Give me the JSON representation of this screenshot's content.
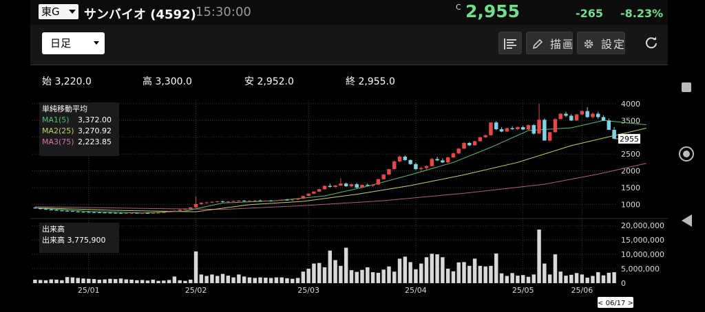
{
  "header": {
    "market": "東G",
    "stock_name": "サンバイオ (4592)",
    "time": "15:30:00",
    "c_mark": "C",
    "price": "2,955",
    "change": "-265",
    "change_pct": "-8.23%"
  },
  "toolbar": {
    "timeframe": "日足",
    "draw_label": "描画",
    "settings_label": "設定"
  },
  "ohlc": {
    "open_label": "始",
    "open": "3,220.0",
    "high_label": "高",
    "high": "3,300.0",
    "low_label": "安",
    "low": "2,952.0",
    "close_label": "終",
    "close": "2,955.0"
  },
  "ma_legend": {
    "title": "単純移動平均",
    "ma1_label": "MA1(5)",
    "ma1_value": "3,372.00",
    "ma2_label": "MA2(25)",
    "ma2_value": "3,270.92",
    "ma3_label": "MA3(75)",
    "ma3_value": "2,223.85"
  },
  "volume_legend": {
    "title": "出来高",
    "label": "出来高",
    "value": "3,775,900"
  },
  "price_axis": {
    "ticks": [
      "4000",
      "3500",
      "3000",
      "2500",
      "2000",
      "1500",
      "1000"
    ],
    "current": "2955"
  },
  "volume_axis": {
    "ticks": [
      "20,000,000",
      "15,000,000",
      "10,000,000",
      "5,000,000",
      "0"
    ]
  },
  "date_axis": {
    "ticks": [
      "25/01",
      "25/02",
      "25/03",
      "25/04",
      "25/05",
      "25/06"
    ],
    "cursor": "< 06/17 >"
  },
  "colors": {
    "up": "#e8474a",
    "down": "#7fd3e6",
    "ma1": "#53c46c",
    "ma2": "#c8d46a",
    "ma3": "#b0607e",
    "accent_green": "#6fe08a"
  },
  "chart_data": {
    "type": "candlestick",
    "price_ylim": [
      700,
      4100
    ],
    "volume_ylim": [
      0,
      21000000
    ],
    "candles_ohlc": [
      [
        900,
        920,
        870,
        880
      ],
      [
        880,
        900,
        850,
        860
      ],
      [
        860,
        880,
        840,
        845
      ],
      [
        845,
        860,
        820,
        830
      ],
      [
        830,
        850,
        810,
        815
      ],
      [
        815,
        830,
        800,
        805
      ],
      [
        805,
        820,
        790,
        800
      ],
      [
        800,
        815,
        780,
        785
      ],
      [
        785,
        800,
        770,
        775
      ],
      [
        775,
        790,
        760,
        770
      ],
      [
        770,
        785,
        755,
        765
      ],
      [
        765,
        780,
        750,
        760
      ],
      [
        760,
        775,
        745,
        755
      ],
      [
        755,
        770,
        740,
        750
      ],
      [
        750,
        765,
        735,
        745
      ],
      [
        745,
        760,
        730,
        740
      ],
      [
        740,
        755,
        728,
        735
      ],
      [
        735,
        750,
        725,
        740
      ],
      [
        740,
        755,
        730,
        745
      ],
      [
        745,
        760,
        735,
        738
      ],
      [
        738,
        752,
        728,
        742
      ],
      [
        742,
        758,
        735,
        740
      ],
      [
        740,
        755,
        730,
        745
      ],
      [
        745,
        760,
        738,
        750
      ],
      [
        750,
        770,
        742,
        765
      ],
      [
        765,
        800,
        760,
        795
      ],
      [
        795,
        820,
        785,
        810
      ],
      [
        810,
        850,
        800,
        840
      ],
      [
        840,
        880,
        830,
        870
      ],
      [
        870,
        920,
        860,
        910
      ],
      [
        910,
        1230,
        900,
        1010
      ],
      [
        1010,
        1060,
        990,
        1045
      ],
      [
        1045,
        1080,
        1020,
        1055
      ],
      [
        1055,
        1090,
        1040,
        1075
      ],
      [
        1075,
        1100,
        1050,
        1090
      ],
      [
        1090,
        1110,
        1060,
        1070
      ],
      [
        1070,
        1100,
        1055,
        1085
      ],
      [
        1085,
        1115,
        1070,
        1100
      ],
      [
        1100,
        1125,
        1080,
        1110
      ],
      [
        1110,
        1130,
        1085,
        1095
      ],
      [
        1095,
        1120,
        1080,
        1105
      ],
      [
        1105,
        1130,
        1090,
        1115
      ],
      [
        1115,
        1140,
        1095,
        1100
      ],
      [
        1100,
        1125,
        1085,
        1110
      ],
      [
        1110,
        1135,
        1090,
        1105
      ],
      [
        1105,
        1130,
        1090,
        1120
      ],
      [
        1120,
        1150,
        1105,
        1135
      ],
      [
        1135,
        1160,
        1115,
        1125
      ],
      [
        1125,
        1150,
        1110,
        1140
      ],
      [
        1140,
        1180,
        1130,
        1170
      ],
      [
        1170,
        1260,
        1160,
        1250
      ],
      [
        1250,
        1330,
        1240,
        1320
      ],
      [
        1320,
        1390,
        1300,
        1380
      ],
      [
        1380,
        1460,
        1370,
        1450
      ],
      [
        1450,
        1560,
        1440,
        1550
      ],
      [
        1550,
        1620,
        1500,
        1520
      ],
      [
        1520,
        1580,
        1490,
        1560
      ],
      [
        1560,
        1780,
        1550,
        1620
      ],
      [
        1620,
        1650,
        1520,
        1540
      ],
      [
        1540,
        1620,
        1510,
        1600
      ],
      [
        1600,
        1640,
        1480,
        1500
      ],
      [
        1500,
        1590,
        1480,
        1580
      ],
      [
        1580,
        1620,
        1540,
        1555
      ],
      [
        1555,
        1600,
        1520,
        1590
      ],
      [
        1590,
        1760,
        1580,
        1750
      ],
      [
        1750,
        1900,
        1740,
        1890
      ],
      [
        1890,
        2060,
        1880,
        2050
      ],
      [
        2050,
        2300,
        2040,
        2280
      ],
      [
        2280,
        2450,
        2260,
        2420
      ],
      [
        2420,
        2460,
        2300,
        2320
      ],
      [
        2320,
        2340,
        2180,
        2200
      ],
      [
        2200,
        2240,
        2020,
        2050
      ],
      [
        2050,
        2120,
        1980,
        2080
      ],
      [
        2080,
        2160,
        2040,
        2140
      ],
      [
        2140,
        2380,
        2130,
        2350
      ],
      [
        2350,
        2420,
        2290,
        2310
      ],
      [
        2310,
        2370,
        2230,
        2250
      ],
      [
        2250,
        2420,
        2240,
        2400
      ],
      [
        2400,
        2540,
        2390,
        2520
      ],
      [
        2520,
        2680,
        2500,
        2660
      ],
      [
        2660,
        2850,
        2650,
        2830
      ],
      [
        2830,
        2860,
        2740,
        2760
      ],
      [
        2760,
        2900,
        2750,
        2880
      ],
      [
        2880,
        3020,
        2870,
        3000
      ],
      [
        3000,
        3080,
        2980,
        3060
      ],
      [
        3060,
        3450,
        3050,
        3440
      ],
      [
        3440,
        3480,
        3210,
        3240
      ],
      [
        3240,
        3300,
        3150,
        3170
      ],
      [
        3170,
        3280,
        3160,
        3270
      ],
      [
        3270,
        3330,
        3220,
        3240
      ],
      [
        3240,
        3320,
        3210,
        3300
      ],
      [
        3300,
        3340,
        3210,
        3230
      ],
      [
        3230,
        3380,
        3220,
        3360
      ],
      [
        3360,
        3390,
        3080,
        3110
      ],
      [
        3110,
        4000,
        3100,
        3520
      ],
      [
        3520,
        3560,
        3060,
        2900
      ],
      [
        2900,
        3160,
        2880,
        3150
      ],
      [
        3150,
        3560,
        3140,
        3540
      ],
      [
        3540,
        3720,
        3530,
        3700
      ],
      [
        3700,
        3760,
        3600,
        3640
      ],
      [
        3640,
        3690,
        3480,
        3500
      ],
      [
        3500,
        3700,
        3490,
        3680
      ],
      [
        3680,
        3800,
        3660,
        3780
      ],
      [
        3780,
        3900,
        3580,
        3600
      ],
      [
        3600,
        3740,
        3560,
        3700
      ],
      [
        3700,
        3760,
        3550,
        3600
      ],
      [
        3600,
        3660,
        3480,
        3500
      ],
      [
        3500,
        3560,
        3300,
        3220
      ],
      [
        3220,
        3300,
        2952,
        2955
      ]
    ],
    "volume_millions": [
      1.2,
      1.1,
      1.0,
      1.3,
      1.2,
      1.0,
      2.1,
      2.0,
      1.8,
      1.6,
      1.5,
      1.4,
      1.2,
      1.3,
      1.5,
      1.4,
      1.6,
      1.3,
      1.2,
      1.0,
      1.1,
      0.9,
      1.2,
      0.8,
      0.9,
      1.1,
      2.3,
      1.0,
      0.8,
      1.2,
      11.0,
      3.0,
      2.5,
      3.0,
      2.5,
      3.2,
      2.6,
      2.0,
      3.0,
      2.3,
      2.0,
      1.8,
      2.0,
      1.9,
      1.8,
      2.0,
      2.0,
      1.7,
      1.5,
      1.8,
      4.0,
      5.0,
      6.8,
      7.0,
      5.5,
      11.3,
      8.0,
      6.0,
      12.3,
      4.5,
      3.9,
      4.6,
      5.5,
      3.8,
      3.6,
      4.7,
      5.8,
      4.0,
      8.5,
      9.2,
      7.3,
      4.8,
      6.8,
      9.0,
      10.2,
      10.0,
      9.0,
      5.0,
      4.1,
      7.2,
      7.3,
      6.0,
      8.5,
      6.0,
      5.8,
      6.0,
      10.3,
      3.4,
      2.5,
      3.5,
      2.6,
      2.8,
      2.2,
      3.0,
      18.6,
      6.8,
      3.0,
      10.0,
      4.0,
      2.6,
      2.9,
      3.5,
      3.0,
      1.9,
      2.5,
      3.8,
      2.7,
      3.6,
      3.8
    ],
    "ma1_points": [
      [
        0,
        895
      ],
      [
        10,
        790
      ],
      [
        20,
        742
      ],
      [
        28,
        800
      ],
      [
        35,
        1040
      ],
      [
        45,
        1110
      ],
      [
        54,
        1250
      ],
      [
        62,
        1540
      ],
      [
        70,
        1880
      ],
      [
        78,
        2250
      ],
      [
        85,
        2700
      ],
      [
        92,
        3200
      ],
      [
        100,
        3280
      ],
      [
        106,
        3500
      ],
      [
        114,
        3372
      ]
    ],
    "ma2_points": [
      [
        0,
        900
      ],
      [
        15,
        820
      ],
      [
        30,
        780
      ],
      [
        40,
        990
      ],
      [
        50,
        1090
      ],
      [
        60,
        1300
      ],
      [
        70,
        1560
      ],
      [
        80,
        1880
      ],
      [
        90,
        2250
      ],
      [
        100,
        2750
      ],
      [
        108,
        3050
      ],
      [
        114,
        3270
      ]
    ],
    "ma3_points": [
      [
        0,
        930
      ],
      [
        20,
        880
      ],
      [
        35,
        850
      ],
      [
        50,
        960
      ],
      [
        65,
        1110
      ],
      [
        80,
        1330
      ],
      [
        95,
        1600
      ],
      [
        105,
        1900
      ],
      [
        114,
        2224
      ]
    ]
  }
}
